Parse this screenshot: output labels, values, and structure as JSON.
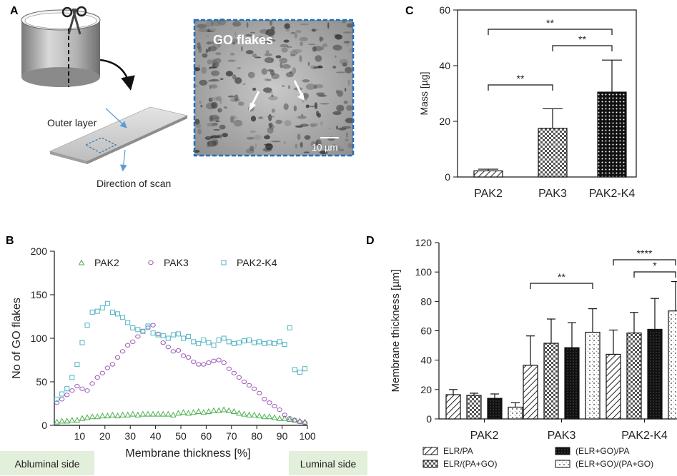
{
  "panels": {
    "A": "A",
    "B": "B",
    "C": "C",
    "D": "D"
  },
  "schematic": {
    "outer_layer": "Outer layer",
    "direction_of_scan": "Direction of scan",
    "micrograph_title": "GO flakes",
    "scale_bar": "10 µm",
    "colors": {
      "cylinder": "#a9a9a9",
      "sheet": "#cfcfcf",
      "arrow": "#5b9bd5",
      "scan_box": "#2e75b6",
      "frame": "#1f6fbf"
    }
  },
  "side_labels": {
    "abluminal": "Abluminal side",
    "luminal": "Luminal side",
    "bg": "#e2efda"
  },
  "chart_data": [
    {
      "id": "C",
      "type": "bar",
      "categories": [
        "PAK2",
        "PAK3",
        "PAK2-K4"
      ],
      "values": [
        2.2,
        17.5,
        30.5
      ],
      "errors": [
        0.6,
        7.0,
        11.5
      ],
      "patterns": [
        "hatch",
        "check",
        "dots"
      ],
      "ylabel": "Mass [µg]",
      "ylim": [
        0,
        60
      ],
      "yticks": [
        0,
        20,
        40,
        60
      ],
      "significance": [
        {
          "from": 0,
          "to": 1,
          "label": "**"
        },
        {
          "from": 1,
          "to": 2,
          "label": "**"
        },
        {
          "from": 0,
          "to": 2,
          "label": "**"
        }
      ]
    },
    {
      "id": "B",
      "type": "scatter",
      "xlabel": "Membrane thickness [%]",
      "ylabel": "No of GO flakes",
      "xlim": [
        0,
        100
      ],
      "ylim": [
        0,
        200
      ],
      "xticks": [
        10,
        20,
        30,
        40,
        50,
        60,
        70,
        80,
        90,
        100
      ],
      "yticks": [
        0,
        50,
        100,
        150,
        200
      ],
      "series": [
        {
          "name": "PAK2",
          "marker": "triangle",
          "color": "#4caf50",
          "x": [
            1,
            3,
            5,
            7,
            9,
            11,
            13,
            15,
            17,
            19,
            21,
            23,
            25,
            27,
            29,
            31,
            33,
            35,
            37,
            39,
            41,
            43,
            45,
            47,
            49,
            51,
            53,
            55,
            57,
            59,
            61,
            63,
            65,
            67,
            69,
            71,
            73,
            75,
            77,
            79,
            81,
            83,
            85,
            87,
            89,
            91,
            93,
            95,
            97,
            99
          ],
          "y": [
            4,
            5,
            5,
            6,
            6,
            8,
            9,
            10,
            10,
            11,
            11,
            12,
            11,
            12,
            12,
            13,
            12,
            13,
            13,
            13,
            13,
            13,
            13,
            12,
            14,
            15,
            14,
            15,
            16,
            15,
            16,
            17,
            17,
            18,
            17,
            16,
            14,
            13,
            12,
            12,
            11,
            10,
            10,
            9,
            8,
            8,
            7,
            6,
            5,
            4
          ]
        },
        {
          "name": "PAK3",
          "marker": "circle",
          "color": "#9b59b6",
          "x": [
            1,
            3,
            5,
            7,
            9,
            11,
            13,
            15,
            17,
            19,
            21,
            23,
            25,
            27,
            29,
            31,
            33,
            35,
            37,
            39,
            41,
            43,
            45,
            47,
            49,
            51,
            53,
            55,
            57,
            59,
            61,
            63,
            65,
            67,
            69,
            71,
            73,
            75,
            77,
            79,
            81,
            83,
            85,
            87,
            89,
            91,
            93,
            95,
            97,
            99
          ],
          "y": [
            26,
            30,
            35,
            40,
            45,
            42,
            40,
            48,
            55,
            60,
            66,
            70,
            78,
            85,
            92,
            96,
            102,
            108,
            112,
            115,
            105,
            95,
            90,
            85,
            86,
            80,
            78,
            73,
            70,
            70,
            72,
            74,
            75,
            72,
            65,
            60,
            55,
            50,
            46,
            42,
            37,
            30,
            26,
            22,
            18,
            12,
            8,
            6,
            4,
            3
          ]
        },
        {
          "name": "PAK2-K4",
          "marker": "square",
          "color": "#4fb3c4",
          "x": [
            1,
            3,
            5,
            7,
            9,
            11,
            13,
            15,
            17,
            19,
            21,
            23,
            25,
            27,
            29,
            31,
            33,
            35,
            37,
            39,
            41,
            43,
            45,
            47,
            49,
            51,
            53,
            55,
            57,
            59,
            61,
            63,
            65,
            67,
            69,
            71,
            73,
            75,
            77,
            79,
            81,
            83,
            85,
            87,
            89,
            91,
            93,
            95,
            97,
            99
          ],
          "y": [
            30,
            36,
            42,
            55,
            70,
            95,
            115,
            130,
            131,
            135,
            140,
            130,
            128,
            124,
            118,
            112,
            110,
            108,
            114,
            106,
            104,
            103,
            100,
            104,
            105,
            100,
            102,
            96,
            94,
            98,
            95,
            92,
            98,
            100,
            96,
            94,
            95,
            97,
            98,
            95,
            96,
            94,
            95,
            94,
            96,
            93,
            112,
            64,
            61,
            65
          ]
        }
      ]
    },
    {
      "id": "D",
      "type": "bar",
      "categories": [
        "PAK2",
        "PAK3",
        "PAK2-K4"
      ],
      "ylabel": "Membrane thickness [µm]",
      "ylim": [
        0,
        120
      ],
      "yticks": [
        0,
        20,
        40,
        60,
        80,
        100,
        120
      ],
      "series": [
        {
          "name": "ELR/PA",
          "pattern": "hatch",
          "values": [
            16.5,
            36.5,
            44
          ],
          "errors": [
            3.5,
            20,
            16.5
          ]
        },
        {
          "name": "ELR/(PA+GO)",
          "pattern": "check",
          "values": [
            16,
            51.5,
            58.5
          ],
          "errors": [
            1.5,
            16.5,
            14
          ]
        },
        {
          "name": "(ELR+GO)/PA",
          "pattern": "solid",
          "values": [
            14,
            48.5,
            61
          ],
          "errors": [
            3,
            17,
            21
          ]
        },
        {
          "name": "(ELR+GO)/(PA+GO)",
          "pattern": "dots",
          "values": [
            8,
            59,
            73.5
          ],
          "errors": [
            3,
            16,
            20
          ]
        }
      ],
      "significance": [
        {
          "group": 1,
          "from": 0,
          "to": 3,
          "label": "**"
        },
        {
          "group": 2,
          "from": 0,
          "to": 3,
          "label": "****"
        },
        {
          "group": 2,
          "from": 1,
          "to": 3,
          "label": "*"
        }
      ]
    }
  ]
}
